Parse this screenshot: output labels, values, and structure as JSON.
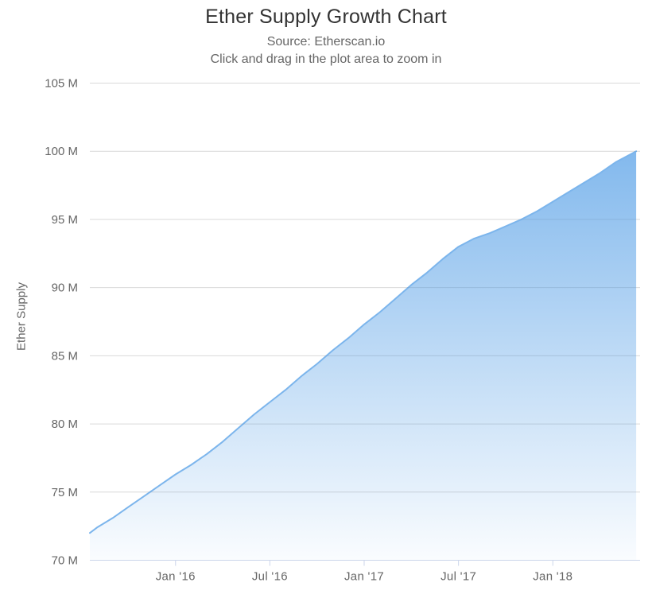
{
  "chart": {
    "title": "Ether Supply Growth Chart",
    "subtitle_line1": "Source: Etherscan.io",
    "subtitle_line2": "Click and drag in the plot area to zoom in",
    "colors": {
      "accent_line": "#7cb5ec",
      "area_fill_top": "rgba(124,181,236,0.95)",
      "area_fill_bottom": "rgba(124,181,236,0.04)",
      "grid_line": "#e6e6e6",
      "grid_overlay_on_fill": "rgba(0,0,0,0.055)",
      "axis_line": "#ccd6eb",
      "title_text": "#333333",
      "muted_text": "#666666"
    }
  },
  "chart_data": {
    "type": "area",
    "title": "Ether Supply Growth Chart",
    "subtitle": "Source: Etherscan.io — Click and drag in the plot area to zoom in",
    "xlabel": "",
    "ylabel": "Ether Supply",
    "ylim": [
      70,
      105
    ],
    "xlim_months": [
      0.55,
      35.55
    ],
    "grid": true,
    "legend": false,
    "y_ticks": [
      {
        "value": 70,
        "label": "70 M"
      },
      {
        "value": 75,
        "label": "75 M"
      },
      {
        "value": 80,
        "label": "80 M"
      },
      {
        "value": 85,
        "label": "85 M"
      },
      {
        "value": 90,
        "label": "90 M"
      },
      {
        "value": 95,
        "label": "95 M"
      },
      {
        "value": 100,
        "label": "100 M"
      },
      {
        "value": 105,
        "label": "105 M"
      }
    ],
    "x_ticks": [
      {
        "t": 6,
        "label": "Jan '16"
      },
      {
        "t": 12,
        "label": "Jul '16"
      },
      {
        "t": 18,
        "label": "Jan '17"
      },
      {
        "t": 24,
        "label": "Jul '17"
      },
      {
        "t": 30,
        "label": "Jan '18"
      }
    ],
    "series": [
      {
        "name": "Ether Supply",
        "unit": "million ETH",
        "point_format": [
          "month",
          "t_months_since_jul_2015",
          "supply_millions"
        ],
        "points": [
          [
            "Jul '15",
            0.55,
            72.0
          ],
          [
            "Aug '15",
            1,
            72.4
          ],
          [
            "Sep '15",
            2,
            73.1
          ],
          [
            "Oct '15",
            3,
            73.9
          ],
          [
            "Nov '15",
            4,
            74.7
          ],
          [
            "Dec '15",
            5,
            75.5
          ],
          [
            "Jan '16",
            6,
            76.3
          ],
          [
            "Feb '16",
            7,
            77.0
          ],
          [
            "Mar '16",
            8,
            77.8
          ],
          [
            "Apr '16",
            9,
            78.7
          ],
          [
            "May '16",
            10,
            79.7
          ],
          [
            "Jun '16",
            11,
            80.7
          ],
          [
            "Jul '16",
            12,
            81.6
          ],
          [
            "Aug '16",
            13,
            82.5
          ],
          [
            "Sep '16",
            14,
            83.5
          ],
          [
            "Oct '16",
            15,
            84.4
          ],
          [
            "Nov '16",
            16,
            85.4
          ],
          [
            "Dec '16",
            17,
            86.3
          ],
          [
            "Jan '17",
            18,
            87.3
          ],
          [
            "Feb '17",
            19,
            88.2
          ],
          [
            "Mar '17",
            20,
            89.2
          ],
          [
            "Apr '17",
            21,
            90.2
          ],
          [
            "May '17",
            22,
            91.1
          ],
          [
            "Jun '17",
            23,
            92.1
          ],
          [
            "Jul '17",
            24,
            93.0
          ],
          [
            "Aug '17",
            25,
            93.6
          ],
          [
            "Sep '17",
            26,
            94.0
          ],
          [
            "Oct '17",
            27,
            94.5
          ],
          [
            "Nov '17",
            28,
            95.0
          ],
          [
            "Dec '17",
            29,
            95.6
          ],
          [
            "Jan '18",
            30,
            96.3
          ],
          [
            "Feb '18",
            31,
            97.0
          ],
          [
            "Mar '18",
            32,
            97.7
          ],
          [
            "Apr '18",
            33,
            98.4
          ],
          [
            "May '18",
            34,
            99.2
          ],
          [
            "Jun '18",
            35.3,
            100.0
          ]
        ]
      }
    ]
  }
}
